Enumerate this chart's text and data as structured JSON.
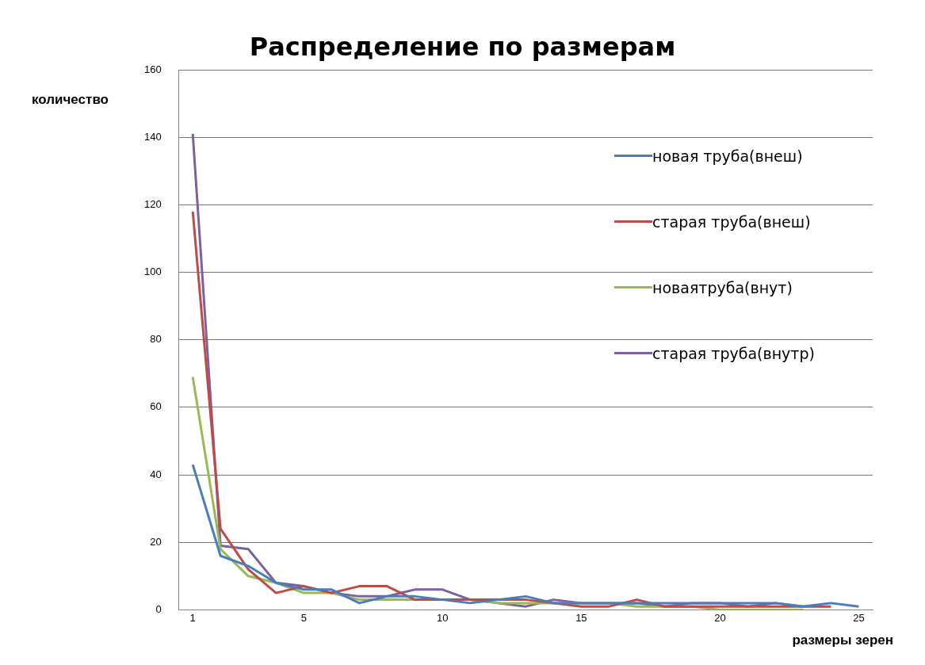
{
  "chart_data": {
    "type": "line",
    "title": "Распределение по размерам",
    "xlabel": "размеры зерен",
    "ylabel": "количество",
    "x": [
      1,
      2,
      3,
      4,
      5,
      6,
      7,
      8,
      9,
      10,
      11,
      12,
      13,
      14,
      15,
      16,
      17,
      18,
      19,
      20,
      21,
      22,
      23,
      24,
      25
    ],
    "xlim": [
      0.5,
      25.5
    ],
    "xticks": [
      1,
      5,
      10,
      15,
      20,
      25
    ],
    "ylim": [
      0,
      160
    ],
    "yticks": [
      0,
      20,
      40,
      60,
      80,
      100,
      120,
      140,
      160
    ],
    "grid": "y",
    "legend": "top right",
    "marker": "none",
    "line_style": "solid",
    "series": [
      {
        "name": "новая труба(внеш)",
        "color": "#4a7ebb",
        "values": [
          43,
          16,
          13,
          8,
          6,
          6,
          2,
          4,
          4,
          3,
          2,
          3,
          4,
          2,
          2,
          2,
          2,
          2,
          2,
          2,
          2,
          2,
          1,
          2,
          1
        ]
      },
      {
        "name": "старая труба(внеш)",
        "color": "#be4b48",
        "values": [
          118,
          24,
          12,
          5,
          7,
          5,
          7,
          7,
          3,
          3,
          3,
          3,
          3,
          2,
          1,
          1,
          3,
          1,
          1,
          1,
          1,
          1,
          1,
          1,
          null
        ]
      },
      {
        "name": "новаятруба(внут)",
        "color": "#98b954",
        "values": [
          69,
          18,
          10,
          8,
          5,
          5,
          3,
          3,
          3,
          3,
          3,
          2,
          2,
          2,
          2,
          2,
          1,
          1,
          1,
          0,
          0,
          0,
          0,
          null,
          null
        ]
      },
      {
        "name": "старая труба(внутр)",
        "color": "#7d60a0",
        "values": [
          141,
          19,
          18,
          8,
          7,
          5,
          4,
          4,
          6,
          6,
          3,
          2,
          1,
          3,
          2,
          2,
          2,
          1,
          2,
          2,
          1,
          2,
          1,
          null,
          null
        ]
      }
    ]
  }
}
